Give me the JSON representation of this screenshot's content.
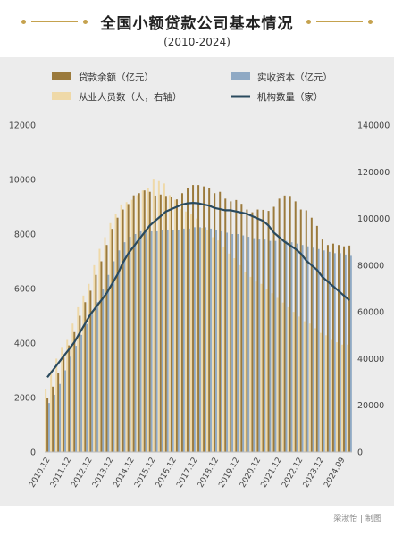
{
  "header": {
    "title": "全国小额贷款公司基本情况",
    "subtitle": "(2010-2024)"
  },
  "footer": {
    "credit": "梁淑怡 | 制图"
  },
  "colors": {
    "loan": "#9b7a3c",
    "capital": "#8fa9c4",
    "staff": "#efd9a8",
    "inst": "#2a4a5e",
    "accent": "#c5a24e"
  },
  "chart_data": {
    "type": "bar",
    "legend": [
      {
        "key": "loan",
        "label": "贷款余额（亿元）"
      },
      {
        "key": "capital",
        "label": "实收资本（亿元）"
      },
      {
        "key": "staff",
        "label": "从业人员数（人，右轴）"
      },
      {
        "key": "inst",
        "label": "机构数量（家）"
      }
    ],
    "x_tick_labels": [
      "2010.12",
      "2011.12",
      "2012.12",
      "2013.12",
      "2014.12",
      "2015.12",
      "2016.12",
      "2017.12",
      "2018.12",
      "2019.12",
      "2020.12",
      "2021.12",
      "2022.12",
      "2023.12",
      "2024.09"
    ],
    "left_axis": {
      "min": 0,
      "max": 12000,
      "ticks": [
        0,
        2000,
        4000,
        6000,
        8000,
        10000,
        12000
      ]
    },
    "right_axis": {
      "min": 0,
      "max": 140000,
      "ticks": [
        0,
        20000,
        40000,
        60000,
        80000,
        100000,
        120000,
        140000
      ]
    },
    "series": [
      {
        "key": "loan",
        "name": "贷款余额（亿元）",
        "axis": "left",
        "values": [
          1975,
          2400,
          2900,
          3500,
          3915,
          4400,
          5000,
          5500,
          5921,
          6500,
          7000,
          7600,
          8191,
          8600,
          8900,
          9100,
          9420,
          9500,
          9600,
          9550,
          9412,
          9450,
          9400,
          9350,
          9273,
          9500,
          9700,
          9800,
          9799,
          9750,
          9700,
          9500,
          9550,
          9300,
          9200,
          9250,
          9109,
          8900,
          8800,
          8900,
          8888,
          8850,
          9000,
          9300,
          9415,
          9400,
          9200,
          8900,
          8870,
          8600,
          8300,
          7800,
          7600,
          7650,
          7600,
          7550,
          7579
        ]
      },
      {
        "key": "capital",
        "name": "实收资本（亿元）",
        "axis": "left",
        "values": [
          1800,
          2100,
          2500,
          3000,
          3500,
          3900,
          4300,
          4700,
          5100,
          5500,
          6000,
          6500,
          7000,
          7400,
          7700,
          7900,
          8000,
          8100,
          8100,
          8100,
          8100,
          8150,
          8150,
          8150,
          8150,
          8200,
          8200,
          8250,
          8250,
          8250,
          8200,
          8150,
          8100,
          8050,
          8000,
          8000,
          7950,
          7900,
          7850,
          7800,
          7800,
          7750,
          7750,
          7750,
          7750,
          7700,
          7650,
          7600,
          7550,
          7500,
          7450,
          7400,
          7350,
          7300,
          7300,
          7250,
          7200
        ]
      },
      {
        "key": "staff",
        "name": "从业人员数（人，右轴）",
        "axis": "right",
        "values": [
          27000,
          35000,
          40000,
          45000,
          48000,
          55000,
          62000,
          67000,
          72000,
          80000,
          87000,
          92000,
          98000,
          102000,
          106000,
          107000,
          108000,
          110000,
          112000,
          113000,
          117000,
          116000,
          115000,
          110000,
          108000,
          104000,
          103000,
          102000,
          100000,
          96000,
          95000,
          92000,
          90600,
          88000,
          85000,
          83000,
          80000,
          77000,
          75000,
          73000,
          72000,
          70000,
          68000,
          66000,
          64000,
          62000,
          60000,
          58000,
          56000,
          55000,
          53000,
          51000,
          50000,
          48000,
          47000,
          46000,
          46000
        ]
      },
      {
        "key": "inst",
        "name": "机构数量（家）",
        "type": "line",
        "axis": "right",
        "values": [
          32000,
          35000,
          38000,
          41000,
          44000,
          47000,
          51000,
          55000,
          59000,
          62000,
          65000,
          68000,
          72000,
          76000,
          81000,
          85000,
          88000,
          91000,
          94000,
          97000,
          99000,
          101000,
          103000,
          104000,
          105000,
          106000,
          106500,
          106700,
          106500,
          106000,
          105500,
          104500,
          104000,
          103500,
          103500,
          103000,
          102500,
          102000,
          101000,
          100000,
          99000,
          97000,
          94000,
          92000,
          90000,
          88500,
          87000,
          85000,
          82000,
          80000,
          78000,
          75000,
          73000,
          71000,
          69000,
          67000,
          65000
        ]
      }
    ],
    "grid": false
  }
}
